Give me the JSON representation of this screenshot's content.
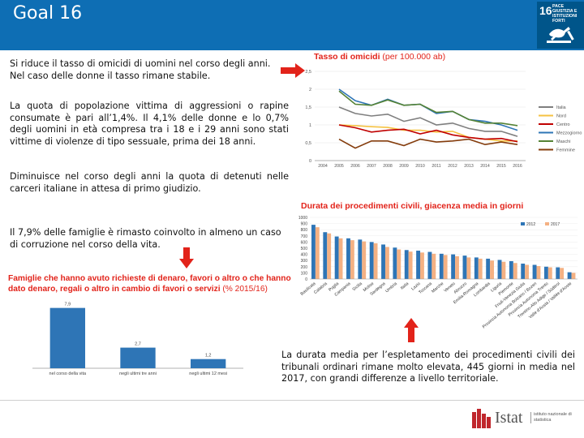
{
  "slide": {
    "title": "Goal 16",
    "sdg_badge": {
      "number": "16",
      "text": "PACE GIUSTIZIA E ISTITUZIONI FORTI",
      "icon": "dove-gavel-icon"
    },
    "colors": {
      "header": "#0e6eb4",
      "badge": "#00558a",
      "chart_title_red": "#e2231a",
      "arrow_red": "#e2231a"
    }
  },
  "text_blocks": {
    "homicides_lines": [
      "Si riduce il tasso di omicidi di uomini nel corso degli anni.",
      "Nel caso delle donne il tasso rimane stabile."
    ],
    "aggression_paragraph": "La quota di popolazione vittima di aggressioni o rapine consumate è pari all’1,4%. Il 4,1% delle donne e lo 0,7% degli uomini in età compresa tra i 18 e i 29 anni sono stati vittime di violenze di tipo sessuale, prima dei 18 anni.",
    "detainees_paragraph": "Diminuisce nel corso degli anni la quota di detenuti nelle carceri italiane in attesa di primo giudizio.",
    "corruption_paragraph": "Il 7,9% delle famiglie è rimasto coinvolto in almeno un caso di corruzione nel corso della vita.",
    "civil_paragraph": "La durata media per l’espletamento dei procedimenti civili dei tribunali ordinari rimane molto elevata, 445 giorni in media nel 2017, con grandi differenze a livello territoriale."
  },
  "chart_data": [
    {
      "type": "line",
      "title": "Tasso di omicidi",
      "subtitle": "(per 100.000 ab)",
      "x": [
        "2004",
        "2005",
        "2006",
        "2007",
        "2008",
        "2009",
        "2010",
        "2011",
        "2012",
        "2013",
        "2014",
        "2015",
        "2016"
      ],
      "ylim": [
        0,
        2.5
      ],
      "yticks": [
        "0",
        "0,5",
        "1",
        "1,5",
        "2",
        "2,5"
      ],
      "legend_position": "right",
      "series": [
        {
          "name": "Italia",
          "color": "#7f7f7f",
          "values": [
            null,
            1.5,
            1.32,
            1.25,
            1.3,
            1.1,
            1.2,
            1.0,
            1.05,
            0.9,
            0.82,
            0.82,
            0.68
          ]
        },
        {
          "name": "Nord",
          "color": "#f5c242",
          "values": [
            null,
            1.0,
            0.98,
            0.95,
            0.93,
            0.85,
            0.85,
            0.8,
            0.82,
            0.65,
            0.6,
            0.55,
            0.55
          ]
        },
        {
          "name": "Centro",
          "color": "#c00000",
          "values": [
            null,
            1.0,
            0.92,
            0.8,
            0.85,
            0.88,
            0.75,
            0.85,
            0.72,
            0.65,
            0.6,
            0.62,
            0.53
          ]
        },
        {
          "name": "Mezzogiorno",
          "color": "#2e75b6",
          "values": [
            null,
            2.0,
            1.68,
            1.55,
            1.72,
            1.55,
            1.58,
            1.32,
            1.38,
            1.15,
            1.1,
            1.0,
            0.85
          ]
        },
        {
          "name": "Maschi",
          "color": "#548235",
          "values": [
            null,
            1.95,
            1.58,
            1.55,
            1.7,
            1.55,
            1.58,
            1.35,
            1.38,
            1.15,
            1.05,
            1.05,
            0.98
          ]
        },
        {
          "name": "Femmine",
          "color": "#843c0c",
          "values": [
            null,
            0.6,
            0.35,
            0.55,
            0.55,
            0.42,
            0.6,
            0.52,
            0.55,
            0.6,
            0.45,
            0.52,
            0.45
          ]
        }
      ]
    },
    {
      "type": "bar",
      "title": "Durata dei procedimenti civili, giacenza media in giorni",
      "ylim": [
        0,
        1000
      ],
      "yticks": [
        "0",
        "100",
        "200",
        "300",
        "400",
        "500",
        "600",
        "700",
        "800",
        "900",
        "1000"
      ],
      "legend_position": "top-right",
      "categories": [
        "Basilicata",
        "Calabria",
        "Puglia",
        "Campania",
        "Sicilia",
        "Molise",
        "Sardegna",
        "Umbria",
        "Italia",
        "Lazio",
        "Toscana",
        "Marche",
        "Veneto",
        "Abruzzo",
        "Emilia-Romagna",
        "Lombardia",
        "Liguria",
        "Piemonte",
        "Friuli-Venezia Giulia",
        "Provincia Autonoma Bolzano / Bozen",
        "Provincia Autonoma Trento",
        "Trentino-Alto Adige / Südtirol",
        "Valle d'Aosta / Vallée d'Aoste"
      ],
      "series": [
        {
          "name": "2012",
          "color": "#2e75b6",
          "values": [
            880,
            760,
            690,
            660,
            640,
            600,
            560,
            510,
            470,
            460,
            440,
            410,
            400,
            380,
            350,
            330,
            310,
            290,
            250,
            230,
            200,
            190,
            110
          ]
        },
        {
          "name": "2017",
          "color": "#f4b183",
          "values": [
            840,
            740,
            660,
            630,
            610,
            580,
            520,
            480,
            445,
            430,
            410,
            390,
            370,
            350,
            330,
            300,
            280,
            260,
            230,
            210,
            190,
            180,
            100
          ]
        }
      ]
    },
    {
      "type": "bar",
      "title": "Famiglie che hanno avuto richieste di denaro, favori o altro o che hanno dato denaro, regali o altro in cambio di favori o servizi",
      "subtitle": "(% 2015/16)",
      "categories": [
        "nel corso della vita",
        "negli ultimi tre anni",
        "negli ultimi 12 mesi"
      ],
      "values": [
        7.9,
        2.7,
        1.2
      ],
      "value_labels": [
        "7,9",
        "2,7",
        "1,2"
      ],
      "ylim": [
        0,
        8.5
      ],
      "color": "#2e75b6"
    }
  ],
  "footer": {
    "logo_text": "Istat",
    "logo_subtext": "istituto nazionale di statistica"
  }
}
